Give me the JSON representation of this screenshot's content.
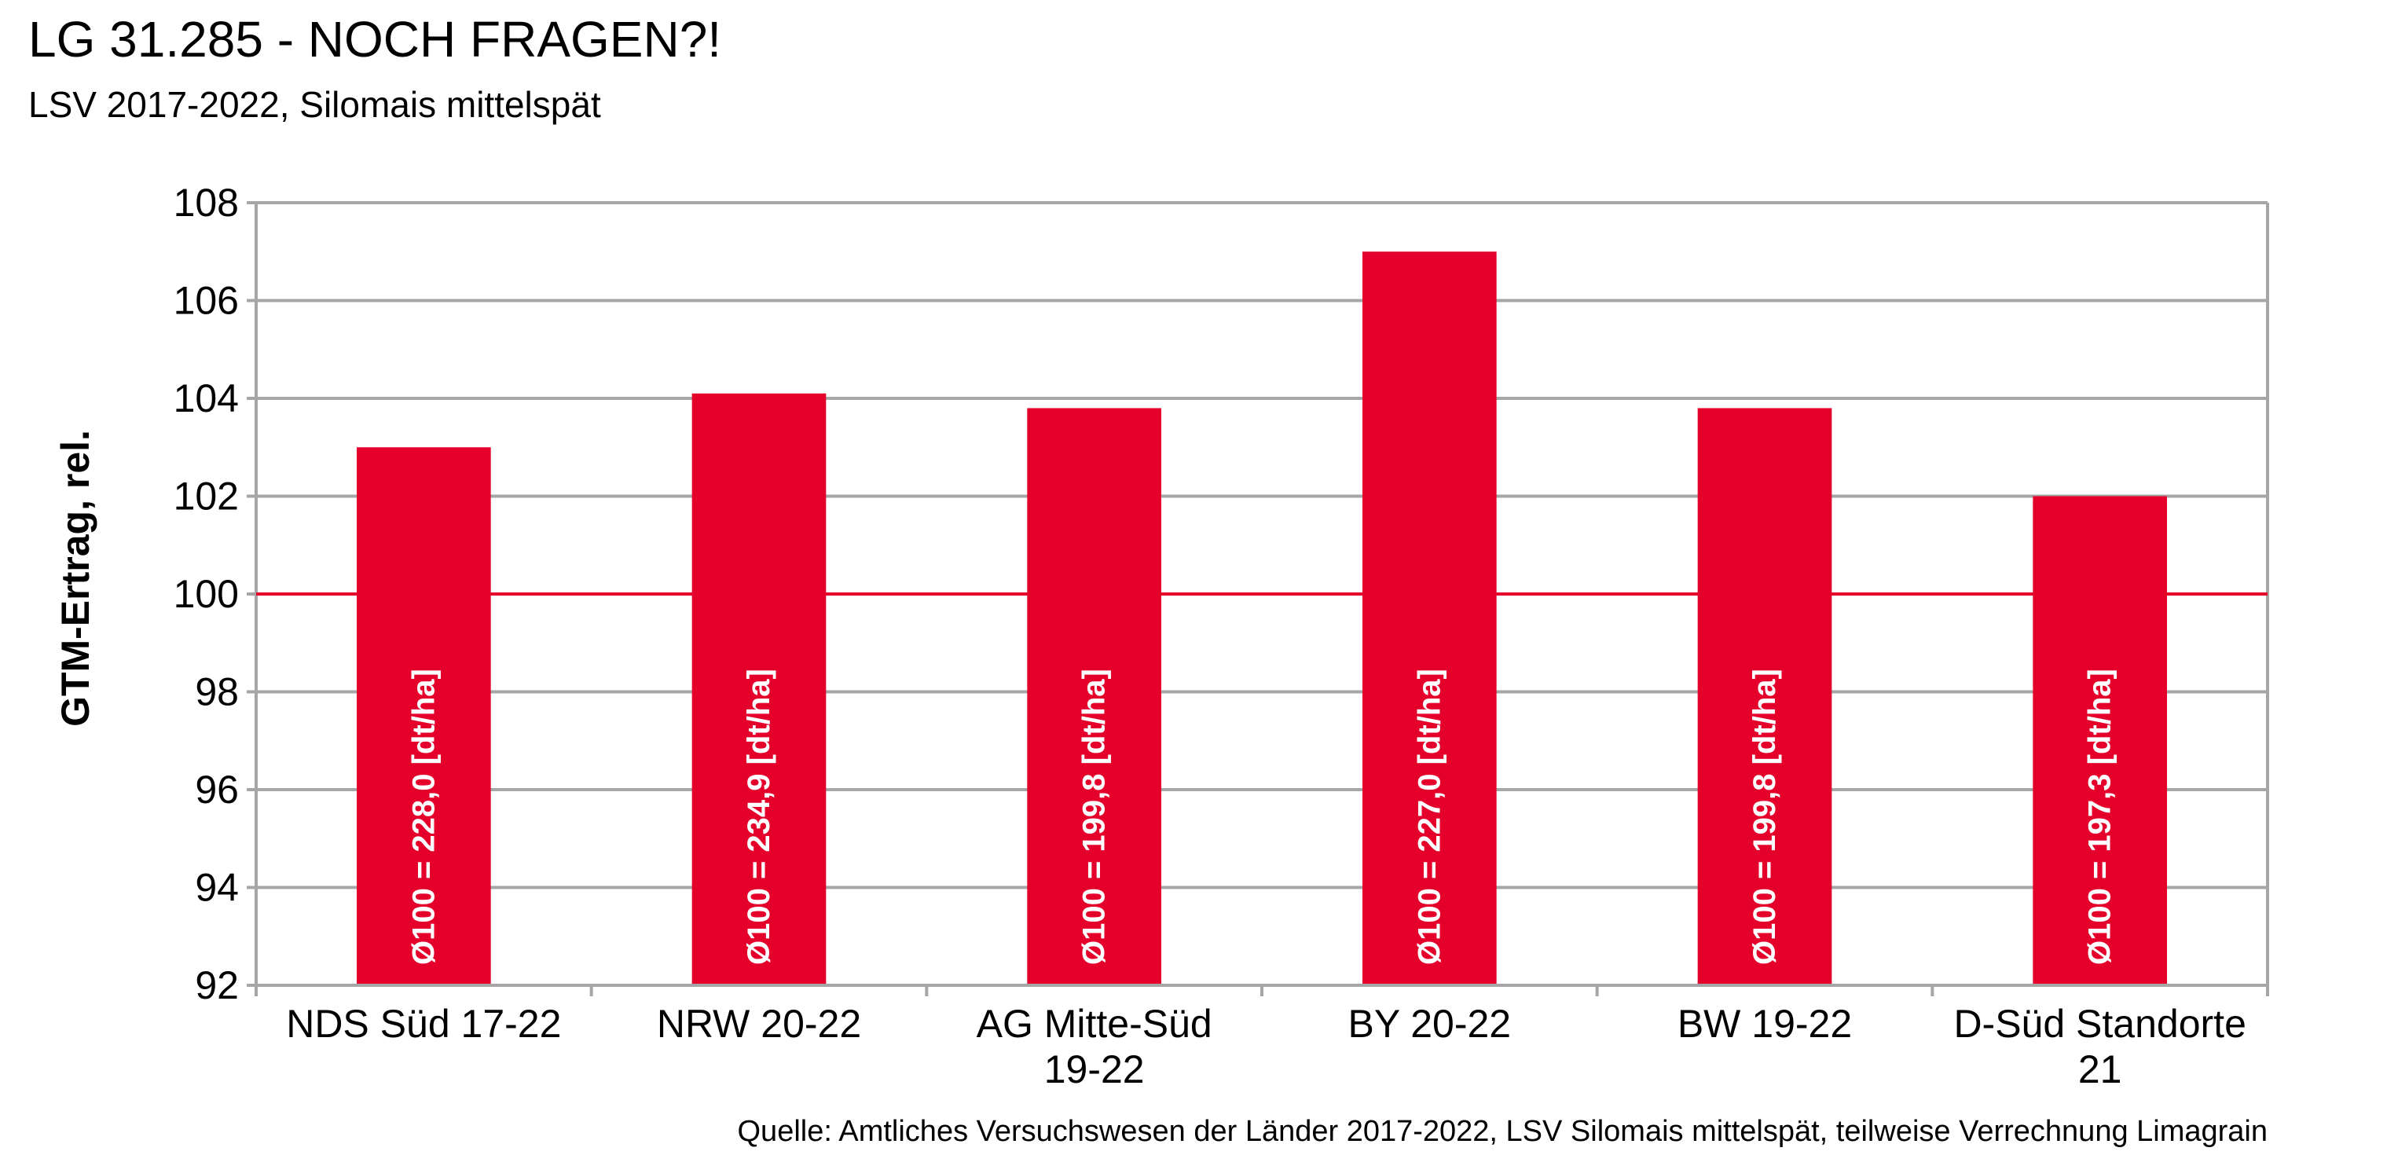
{
  "chart_data": {
    "type": "bar",
    "title": "LG 31.285 - NOCH FRAGEN?!",
    "subtitle": "LSV 2017-2022, Silomais mittelspät",
    "ylabel": "GTM-Ertrag, rel.",
    "xlabel": "",
    "categories": [
      [
        "NDS Süd 17-22"
      ],
      [
        "NRW 20-22"
      ],
      [
        "AG Mitte-Süd",
        "19-22"
      ],
      [
        "BY 20-22"
      ],
      [
        "BW 19-22"
      ],
      [
        "D-Süd Standorte",
        "21"
      ]
    ],
    "values": [
      103.0,
      104.1,
      103.8,
      107.0,
      103.8,
      102.0
    ],
    "bar_labels": [
      "Ø100 = 228,0 [dt/ha]",
      "Ø100 = 234,9 [dt/ha]",
      "Ø100 = 199,8 [dt/ha]",
      "Ø100 = 227,0 [dt/ha]",
      "Ø100 = 199,8 [dt/ha]",
      "Ø100 = 197,3 [dt/ha]"
    ],
    "ylim": [
      92,
      108
    ],
    "yticks": [
      92,
      94,
      96,
      98,
      100,
      102,
      104,
      106,
      108
    ],
    "reference_line": 100,
    "grid": true,
    "legend": "none",
    "colors": {
      "bar": "#E4002B",
      "reference_line": "#E4002B",
      "grid": "#A6A6A6",
      "bar_label": "#FFFFFF"
    },
    "source": "Quelle: Amtliches Versuchswesen der Länder 2017-2022, LSV Silomais mittelspät, teilweise Verrechnung Limagrain"
  }
}
